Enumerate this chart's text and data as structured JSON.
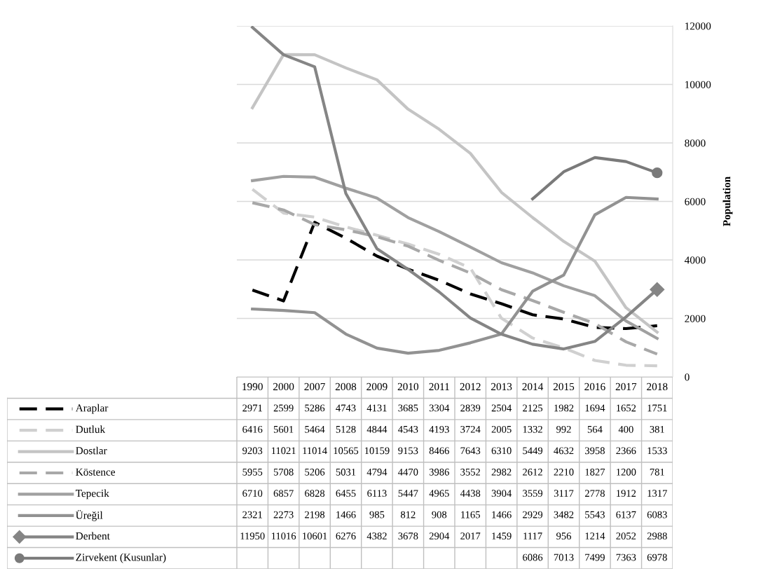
{
  "chart_data": {
    "type": "line",
    "categories": [
      "1990",
      "2000",
      "2007",
      "2008",
      "2009",
      "2010",
      "2011",
      "2012",
      "2013",
      "2014",
      "2015",
      "2016",
      "2017",
      "2018"
    ],
    "ylabel": "Population",
    "ylim": [
      0,
      12000
    ],
    "yticks": [
      0,
      2000,
      4000,
      6000,
      8000,
      10000,
      12000
    ],
    "grid": "y",
    "legend": "bottom left",
    "tick_labels": "y",
    "data_labels": true,
    "series": [
      {
        "name": "Araplar",
        "color": "#000000",
        "line_style": "dashed",
        "values": [
          2971,
          2599,
          5286,
          4743,
          4131,
          3685,
          3304,
          2839,
          2504,
          2125,
          1982,
          1694,
          1652,
          1751
        ]
      },
      {
        "name": "Dutluk",
        "color": "#d0d0d0",
        "line_style": "dashed",
        "values": [
          6416,
          5601,
          5464,
          5128,
          4844,
          4543,
          4193,
          3724,
          2005,
          1332,
          992,
          564,
          400,
          381
        ]
      },
      {
        "name": "Dostlar",
        "color": "#c4c4c4",
        "line_style": "solid",
        "values": [
          9203,
          11021,
          11014,
          10565,
          10159,
          9153,
          8466,
          7643,
          6310,
          5449,
          4632,
          3958,
          2366,
          1533
        ]
      },
      {
        "name": "Köstence",
        "color": "#a8a8a8",
        "line_style": "dashed",
        "values": [
          5955,
          5708,
          5206,
          5031,
          4794,
          4470,
          3986,
          3552,
          2982,
          2612,
          2210,
          1827,
          1200,
          781
        ]
      },
      {
        "name": "Tepecik",
        "color": "#a0a0a0",
        "line_style": "solid",
        "values": [
          6710,
          6857,
          6828,
          6455,
          6113,
          5447,
          4965,
          4438,
          3904,
          3559,
          3117,
          2778,
          1912,
          1317
        ]
      },
      {
        "name": "Üreğil",
        "color": "#929292",
        "line_style": "solid",
        "values": [
          2321,
          2273,
          2198,
          1466,
          985,
          812,
          908,
          1165,
          1466,
          2929,
          3482,
          5543,
          6137,
          6083
        ]
      },
      {
        "name": "Derbent",
        "color": "#858585",
        "line_style": "solid",
        "values": [
          11950,
          11016,
          10601,
          6276,
          4382,
          3678,
          2904,
          2017,
          1459,
          1117,
          956,
          1214,
          2052,
          2988
        ]
      },
      {
        "name": "Zirvekent (Kusunlar)",
        "color": "#7a7a7a",
        "line_style": "solid",
        "values": [
          null,
          null,
          null,
          null,
          null,
          null,
          null,
          null,
          null,
          6086,
          7013,
          7499,
          7363,
          6978
        ]
      }
    ]
  }
}
